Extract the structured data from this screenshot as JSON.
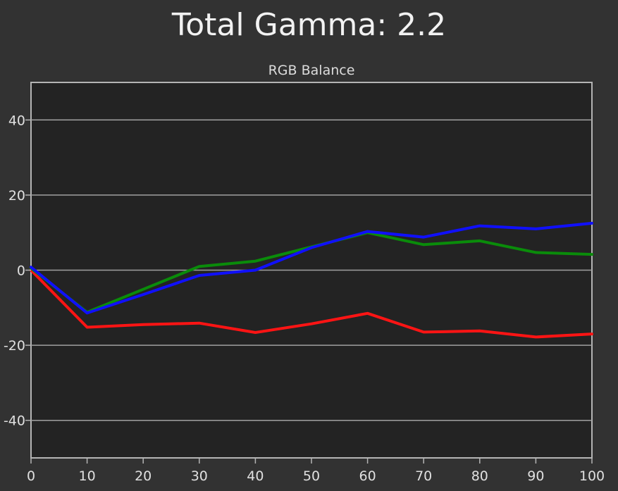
{
  "page": {
    "title": "Total Gamma: 2.2"
  },
  "chart_data": {
    "type": "line",
    "title": "RGB Balance",
    "xlabel": "",
    "ylabel": "",
    "x": [
      0,
      10,
      20,
      30,
      40,
      50,
      60,
      70,
      80,
      90,
      100
    ],
    "xlim": [
      0,
      100
    ],
    "ylim": [
      -50,
      50
    ],
    "x_ticks": [
      0,
      10,
      20,
      30,
      40,
      50,
      60,
      70,
      80,
      90,
      100
    ],
    "y_ticks": [
      -40,
      -20,
      0,
      20,
      40
    ],
    "grid": "horizontal",
    "legend": "none",
    "series": [
      {
        "color": "#ff1414",
        "values": [
          0,
          -15.2,
          -14.5,
          -14.1,
          -16.6,
          -14.3,
          -11.5,
          -16.5,
          -16.2,
          -17.8,
          -17.0
        ]
      },
      {
        "color": "#0a8c0a",
        "values": [
          0.5,
          -11.2,
          -5.1,
          1.0,
          2.4,
          6.2,
          10.0,
          6.8,
          7.8,
          4.7,
          4.2
        ]
      },
      {
        "color": "#1010ff",
        "values": [
          0.8,
          -11.4,
          -6.5,
          -1.4,
          0.0,
          6.0,
          10.3,
          8.8,
          11.8,
          11.0,
          12.5
        ]
      }
    ]
  }
}
